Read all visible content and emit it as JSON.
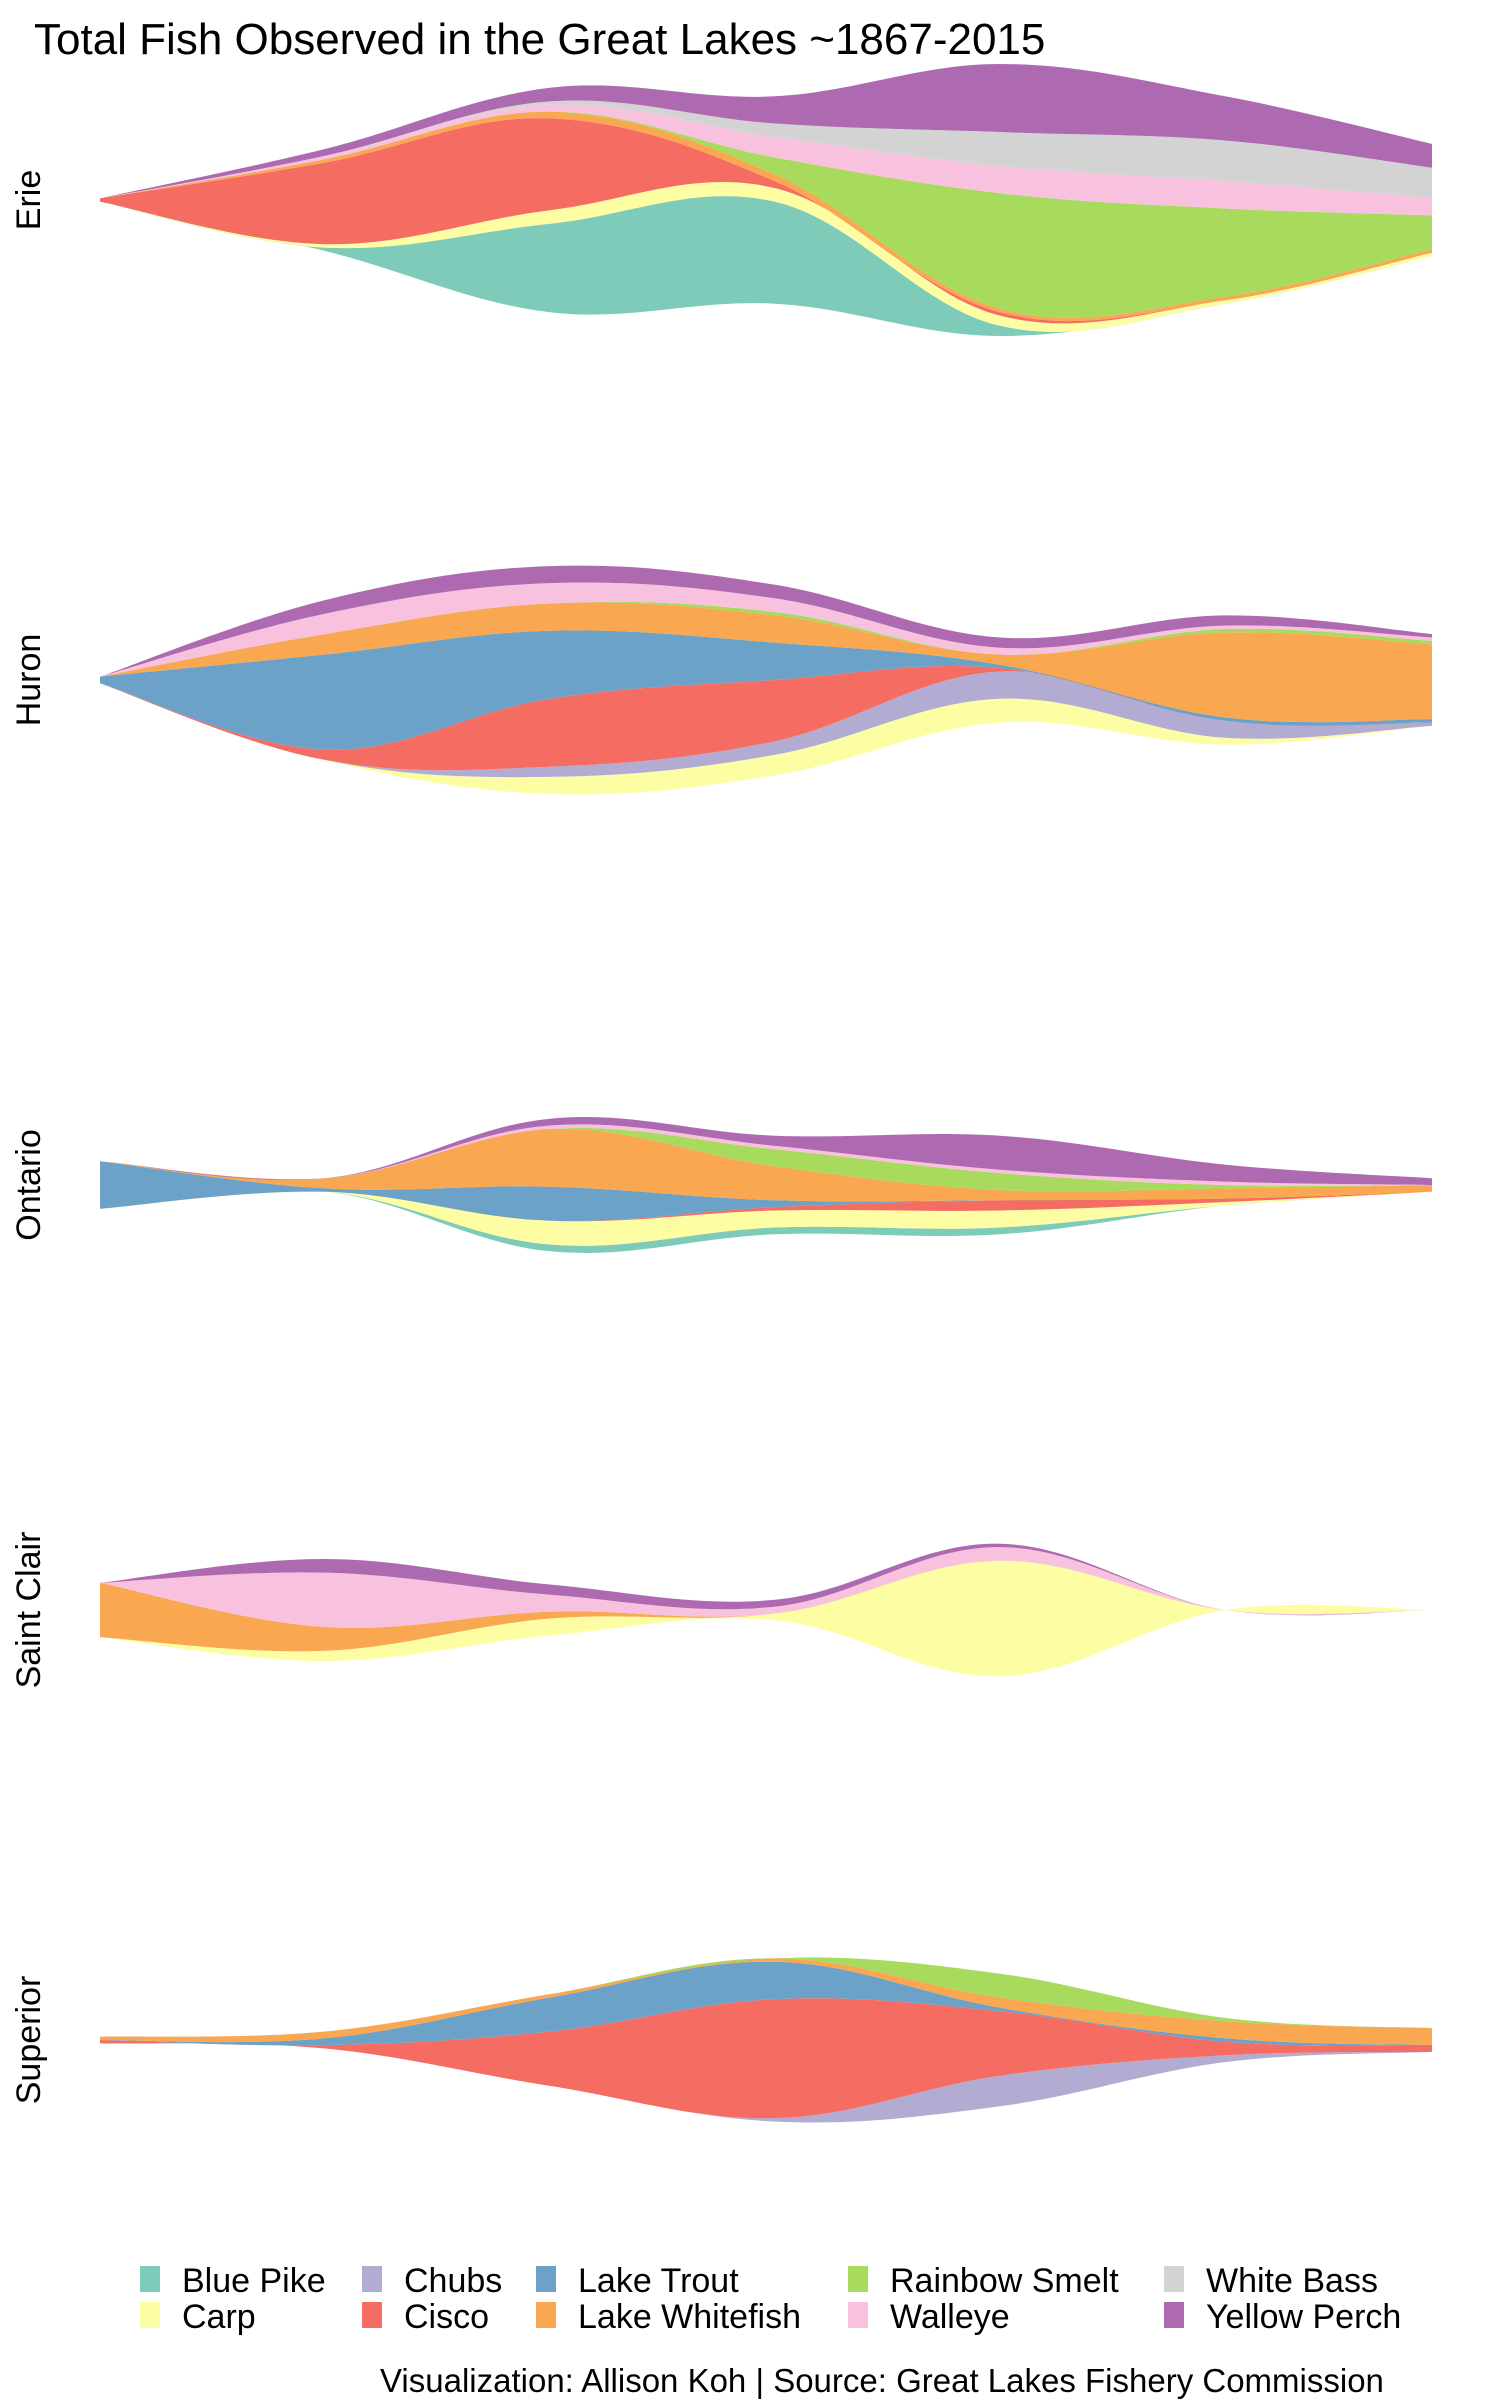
{
  "title": "Total Fish Observed in the Great Lakes ~1867-2015",
  "caption": "Visualization: Allison Koh | Source: Great Lakes Fishery Commission",
  "legend": [
    {
      "name": "Blue Pike",
      "color": "#7fcbb9"
    },
    {
      "name": "Carp",
      "color": "#fdfda4"
    },
    {
      "name": "Chubs",
      "color": "#b2acd2"
    },
    {
      "name": "Cisco",
      "color": "#f56c62"
    },
    {
      "name": "Lake Trout",
      "color": "#6ca1c8"
    },
    {
      "name": "Lake Whitefish",
      "color": "#f9a751"
    },
    {
      "name": "Rainbow Smelt",
      "color": "#a7da5d"
    },
    {
      "name": "Walleye",
      "color": "#f8c2de"
    },
    {
      "name": "White Bass",
      "color": "#d3d3d3"
    },
    {
      "name": "Yellow Perch",
      "color": "#ae6ab1"
    }
  ],
  "chart_data": {
    "type": "area",
    "subtype": "streamgraph",
    "title": "Total Fish Observed in the Great Lakes ~1867-2015",
    "x": [
      1867,
      1892,
      1917,
      1942,
      1967,
      1992,
      2015
    ],
    "xlim": [
      1867,
      2015
    ],
    "grid": false,
    "legend_position": "bottom",
    "series_order": [
      "Blue Pike",
      "Carp",
      "Chubs",
      "Cisco",
      "Lake Trout",
      "Lake Whitefish",
      "Rainbow Smelt",
      "Walleye",
      "White Bass",
      "Yellow Perch"
    ],
    "facets": [
      {
        "lake": "Erie",
        "series": {
          "Blue Pike": [
            0,
            1,
            26,
            30,
            3,
            0,
            0
          ],
          "Carp": [
            0,
            1,
            4,
            4,
            3,
            1,
            1
          ],
          "Chubs": [
            0,
            0,
            0,
            0,
            0,
            0,
            0
          ],
          "Cisco": [
            1,
            24,
            27,
            2,
            1,
            0,
            0
          ],
          "Lake Trout": [
            0,
            0,
            0,
            0,
            0,
            0,
            0
          ],
          "Lake Whitefish": [
            0,
            1,
            2,
            2,
            1,
            1,
            1
          ],
          "Rainbow Smelt": [
            0,
            0,
            0,
            5,
            34,
            26,
            10
          ],
          "Walleye": [
            0,
            1,
            2,
            6,
            8,
            8,
            5
          ],
          "White Bass": [
            0,
            0,
            1,
            4,
            10,
            12,
            9
          ],
          "Yellow Perch": [
            0,
            2,
            4,
            8,
            20,
            13,
            7
          ]
        }
      },
      {
        "lake": "Huron",
        "series": {
          "Blue Pike": [
            0,
            0,
            0,
            0,
            0,
            0,
            0
          ],
          "Carp": [
            0,
            0,
            5,
            6,
            7,
            2,
            0
          ],
          "Chubs": [
            0,
            0,
            3,
            4,
            8,
            5,
            1
          ],
          "Cisco": [
            0,
            3,
            20,
            18,
            1,
            0,
            0
          ],
          "Lake Trout": [
            2,
            28,
            20,
            11,
            1,
            1,
            1
          ],
          "Lake Whitefish": [
            0,
            6,
            8,
            8,
            3,
            25,
            22
          ],
          "Rainbow Smelt": [
            0,
            0,
            0,
            1,
            0,
            1,
            1
          ],
          "Walleye": [
            0,
            6,
            6,
            4,
            2,
            1,
            1
          ],
          "White Bass": [
            0,
            0,
            0,
            0,
            0,
            0,
            0
          ],
          "Yellow Perch": [
            0,
            4,
            5,
            4,
            3,
            3,
            1
          ]
        }
      },
      {
        "lake": "Ontario",
        "series": {
          "Blue Pike": [
            0,
            0,
            2,
            2,
            2,
            0,
            0
          ],
          "Carp": [
            0,
            0,
            7,
            5,
            5,
            1,
            0
          ],
          "Chubs": [
            0,
            0,
            0,
            0,
            0,
            0,
            0
          ],
          "Cisco": [
            0,
            0,
            0,
            1,
            3,
            1,
            0
          ],
          "Lake Trout": [
            14,
            1,
            10,
            2,
            0,
            0,
            0
          ],
          "Lake Whitefish": [
            0,
            3,
            17,
            10,
            3,
            3,
            2
          ],
          "Rainbow Smelt": [
            0,
            0,
            0,
            5,
            5,
            1,
            0
          ],
          "Walleye": [
            0,
            0,
            1,
            1,
            1,
            1,
            0
          ],
          "White Bass": [
            0,
            0,
            0,
            0,
            0,
            0,
            0
          ],
          "Yellow Perch": [
            0,
            0,
            2,
            3,
            10,
            5,
            2
          ]
        }
      },
      {
        "lake": "Saint Clair",
        "series": {
          "Blue Pike": [
            0,
            0,
            0,
            0,
            0,
            0,
            0
          ],
          "Carp": [
            0,
            3,
            5,
            2,
            34,
            0,
            0
          ],
          "Chubs": [
            0,
            0,
            0,
            0,
            0,
            0,
            0
          ],
          "Cisco": [
            0,
            0,
            0,
            0,
            0,
            0,
            0
          ],
          "Lake Trout": [
            0,
            0,
            0,
            0,
            0,
            0,
            0
          ],
          "Lake Whitefish": [
            16,
            7,
            2,
            0,
            0,
            0,
            0
          ],
          "Rainbow Smelt": [
            0,
            0,
            0,
            0,
            0,
            0,
            0
          ],
          "Walleye": [
            0,
            16,
            5,
            2,
            4,
            0,
            0
          ],
          "White Bass": [
            0,
            0,
            0,
            0,
            0,
            0,
            0
          ],
          "Yellow Perch": [
            0,
            4,
            3,
            2,
            1,
            0,
            0
          ]
        }
      },
      {
        "lake": "Superior",
        "series": {
          "Blue Pike": [
            0,
            0,
            0,
            0,
            0,
            0,
            0
          ],
          "Carp": [
            0,
            0,
            0,
            0,
            0,
            0,
            0
          ],
          "Chubs": [
            0,
            0,
            0,
            1,
            9,
            2,
            0
          ],
          "Cisco": [
            1,
            1,
            16,
            35,
            19,
            4,
            2
          ],
          "Lake Trout": [
            0,
            2,
            10,
            11,
            1,
            1,
            0
          ],
          "Lake Whitefish": [
            1,
            2,
            1,
            1,
            3,
            5,
            5
          ],
          "Rainbow Smelt": [
            0,
            0,
            0,
            0,
            7,
            1,
            0
          ],
          "Walleye": [
            0,
            0,
            0,
            0,
            0,
            0,
            0
          ],
          "White Bass": [
            0,
            0,
            0,
            0,
            0,
            0,
            0
          ],
          "Yellow Perch": [
            0,
            0,
            0,
            0,
            0,
            0,
            0
          ]
        }
      }
    ]
  }
}
